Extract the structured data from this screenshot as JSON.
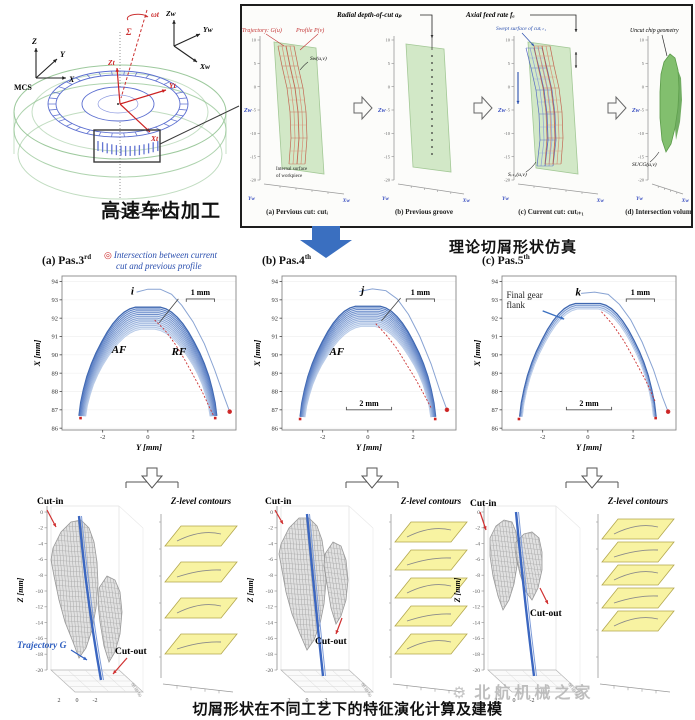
{
  "page": {
    "sim_heading": "理论切屑形状仿真",
    "bottom_caption": "切屑形状在不同工艺下的特征演化计算及建模",
    "watermark": "北航机械之家",
    "watermark_icon": "⚙",
    "accent_blue": "#3a6fc0",
    "red": "#cc2a2a",
    "yellow_plane": "#f8f3a2",
    "green_surface": "#cfe7c3"
  },
  "gear": {
    "caption": "高速车齿加工",
    "mcs": {
      "label": "MCS",
      "z": "Z",
      "y": "Y",
      "x": "X"
    },
    "tool": {
      "omega": "ωt",
      "sigma": "Σ"
    },
    "wcs": {
      "z": "Zw",
      "y": "Yw",
      "x": "Xw"
    },
    "tcs": {
      "z": "Zt",
      "y": "Yt",
      "x": "Xt"
    },
    "omega_w": "ωw"
  },
  "panel": {
    "top_label_radial": "Radial depth-of-cut aₚ",
    "top_label_axial": "Axial feed rate fₐ",
    "zticks": [
      10,
      5,
      0,
      -5,
      -10,
      -15,
      -20
    ],
    "axis": {
      "z": "Zw",
      "y": "Yw",
      "x": "Xw"
    },
    "sub": [
      {
        "caption": "(a) Pervious cut: cutᵢ",
        "trajectory_label": "Trajectory: G(u)",
        "profile_label": "Profile P(v)",
        "surface_label": "Sw(u,v)",
        "note1": "Internal surface",
        "note2": "of workpiece"
      },
      {
        "caption": "(b) Previous groove"
      },
      {
        "caption": "(c) Current cut: cutᵢ₊₁",
        "swept_label": "Swept surface of cutᵢ₊₁",
        "surface_label": "Sᵢ₊₁(u,v)"
      },
      {
        "caption": "(d) Intersection volume",
        "top_label": "Uncut chip geometry",
        "surface_label": "SUCG(u,v)"
      }
    ]
  },
  "chart_data": {
    "profile_plots": [
      {
        "type": "line",
        "key": "a",
        "title_prefix": "(a) Pas.3",
        "title_sup": "rd",
        "xlabel": "Y [mm]",
        "ylabel": "X [mm]",
        "xlim": [
          -3.8,
          3.9
        ],
        "ylim": [
          85.9,
          94.3
        ],
        "xticks": [
          -2,
          0,
          2
        ],
        "yticks": [
          86,
          87,
          88,
          89,
          90,
          91,
          92,
          93,
          94
        ],
        "band": {
          "apex_outer": 92.6,
          "apex_inner": 91.4,
          "flat_outer": 0.55,
          "flat_inner": 0.3,
          "foot_outer": 3.05,
          "foot_inner": 2.75,
          "foot_y": 86.55,
          "curves": 13
        },
        "prev_profile": [
          [
            -0.5,
            93.42
          ],
          [
            0,
            93.58
          ],
          [
            0.55,
            93.58
          ],
          [
            1.05,
            93.3
          ],
          [
            1.5,
            92.7
          ],
          [
            2,
            91.8
          ],
          [
            2.5,
            90.6
          ],
          [
            2.95,
            89.2
          ],
          [
            3.35,
            87.8
          ],
          [
            3.62,
            86.9
          ]
        ],
        "red_dashed": [
          [
            0.3,
            91.9
          ],
          [
            0.75,
            91.35
          ],
          [
            1.2,
            90.6
          ],
          [
            1.6,
            89.8
          ],
          [
            2,
            88.9
          ],
          [
            2.4,
            88
          ],
          [
            2.7,
            87.2
          ],
          [
            2.9,
            86.7
          ]
        ],
        "foot_markers": [
          [
            -2.98,
            86.55
          ],
          [
            2.98,
            86.55
          ],
          [
            3.62,
            86.9
          ]
        ],
        "labels": [
          {
            "t": "AF",
            "x": -1.6,
            "y": 90.1
          },
          {
            "t": "RF",
            "x": 1.05,
            "y": 90.0
          }
        ],
        "letter": {
          "t": "i",
          "x": -0.75,
          "y": 93.3
        },
        "leader": [
          [
            1.35,
            93.05
          ],
          [
            0.5,
            91.75
          ]
        ],
        "scalebar_top": {
          "t": "1 mm",
          "x1": 1.7,
          "x2": 2.95,
          "y": 93.05
        },
        "legend": {
          "marker": "◎",
          "line1": "Intersection between current",
          "line2": "cut and previous profile"
        }
      },
      {
        "type": "line",
        "key": "b",
        "title_prefix": "(b) Pas.4",
        "title_sup": "th",
        "xlabel": "Y [mm]",
        "ylabel": "X [mm]",
        "xlim": [
          -3.8,
          3.9
        ],
        "ylim": [
          85.9,
          94.3
        ],
        "xticks": [
          -2,
          0,
          2
        ],
        "yticks": [
          86,
          87,
          88,
          89,
          90,
          91,
          92,
          93,
          94
        ],
        "band": {
          "apex_outer": 92.65,
          "apex_inner": 91.55,
          "flat_outer": 0.55,
          "flat_inner": 0.3,
          "foot_outer": 3.0,
          "foot_inner": 2.78,
          "foot_y": 86.5,
          "curves": 13
        },
        "prev_profile": [
          [
            -0.4,
            93.45
          ],
          [
            0.2,
            93.6
          ],
          [
            0.8,
            93.5
          ],
          [
            1.3,
            93.05
          ],
          [
            1.8,
            92.2
          ],
          [
            2.3,
            91
          ],
          [
            2.8,
            89.5
          ],
          [
            3.2,
            88
          ],
          [
            3.5,
            87
          ]
        ],
        "red_dashed": [
          [
            0.35,
            91.7
          ],
          [
            0.8,
            91.1
          ],
          [
            1.25,
            90.4
          ],
          [
            1.7,
            89.5
          ],
          [
            2.1,
            88.7
          ],
          [
            2.5,
            87.8
          ],
          [
            2.8,
            87.1
          ]
        ],
        "foot_markers": [
          [
            -3.0,
            86.5
          ],
          [
            2.98,
            86.5
          ],
          [
            3.5,
            87.0
          ]
        ],
        "labels": [
          {
            "t": "AF",
            "x": -1.7,
            "y": 90.0
          }
        ],
        "letter": {
          "t": "j",
          "x": -0.3,
          "y": 93.35
        },
        "leader": [
          [
            1.45,
            93.1
          ],
          [
            0.6,
            91.85
          ]
        ],
        "scalebar_top": {
          "t": "1 mm",
          "x1": 1.7,
          "x2": 2.95,
          "y": 93.05
        },
        "scalebar_bottom": {
          "t": "2 mm",
          "x1": -0.95,
          "x2": 1.05,
          "y": 87.0
        }
      },
      {
        "type": "line",
        "key": "c",
        "title_prefix": "(c) Pas.5",
        "title_sup": "th",
        "xlabel": "Y [mm]",
        "ylabel": "X [mm]",
        "xlim": [
          -3.8,
          3.9
        ],
        "ylim": [
          85.9,
          94.3
        ],
        "xticks": [
          -2,
          0,
          2
        ],
        "yticks": [
          86,
          87,
          88,
          89,
          90,
          91,
          92,
          93,
          94
        ],
        "band": {
          "apex_outer": 92.8,
          "apex_inner": 92.5,
          "flat_outer": 0.55,
          "flat_inner": 0.45,
          "foot_outer": 3.02,
          "foot_inner": 2.9,
          "foot_y": 86.5,
          "curves": 4
        },
        "prev_profile": [
          [
            -0.3,
            93.35
          ],
          [
            0.3,
            93.42
          ],
          [
            0.9,
            93.3
          ],
          [
            1.4,
            92.75
          ],
          [
            1.9,
            91.9
          ],
          [
            2.4,
            90.7
          ],
          [
            2.9,
            89.2
          ],
          [
            3.3,
            87.7
          ],
          [
            3.55,
            86.9
          ]
        ],
        "red_dashed": [
          [
            0.6,
            92.35
          ],
          [
            1.1,
            91.65
          ],
          [
            1.6,
            90.75
          ],
          [
            2.1,
            89.65
          ],
          [
            2.6,
            88.5
          ],
          [
            3.0,
            87.4
          ]
        ],
        "foot_markers": [
          [
            -3.05,
            86.5
          ],
          [
            3.0,
            86.55
          ],
          [
            3.55,
            86.9
          ]
        ],
        "labels": [],
        "letter": {
          "t": "k",
          "x": -0.55,
          "y": 93.25
        },
        "scalebar_top": {
          "t": "1 mm",
          "x1": 1.7,
          "x2": 2.95,
          "y": 93.05
        },
        "scalebar_bottom": {
          "t": "2 mm",
          "x1": -0.95,
          "x2": 1.05,
          "y": 87.0
        },
        "flank_label": {
          "line1": "Final gear",
          "line2": "flank",
          "x": -3.6,
          "y": 93.1,
          "arrow": [
            [
              -2.0,
              92.4
            ],
            [
              -1.05,
              91.95
            ]
          ]
        }
      }
    ],
    "chip3d": [
      {
        "type": "scatter",
        "key": "a",
        "zlabel": "Z [mm]",
        "zticks": [
          0,
          -2,
          -4,
          -6,
          -8,
          -10,
          -12,
          -14,
          -16,
          -18,
          -20
        ],
        "floor_ticks": [
          "2",
          "0",
          "-2"
        ],
        "side_ticks": "86 88 90",
        "lobe1": [
          [
            38,
            56
          ],
          [
            46,
            40
          ],
          [
            56,
            30
          ],
          [
            66,
            28
          ],
          [
            74,
            36
          ],
          [
            79,
            50
          ],
          [
            82,
            70
          ],
          [
            83,
            92
          ],
          [
            81,
            116
          ],
          [
            77,
            138
          ],
          [
            71,
            156
          ],
          [
            64,
            166
          ],
          [
            58,
            150
          ],
          [
            50,
            130
          ],
          [
            44,
            108
          ],
          [
            39,
            84
          ],
          [
            36,
            68
          ]
        ],
        "lobe2": [
          [
            84,
            96
          ],
          [
            92,
            84
          ],
          [
            100,
            88
          ],
          [
            105,
            100
          ],
          [
            107,
            120
          ],
          [
            105,
            142
          ],
          [
            100,
            160
          ],
          [
            94,
            170
          ],
          [
            89,
            154
          ],
          [
            85,
            130
          ],
          [
            83,
            112
          ]
        ],
        "traj": [
          [
            64,
            24
          ],
          [
            72,
            110
          ],
          [
            86,
            188
          ]
        ],
        "cut_in": {
          "t": "Cut-in",
          "x": 22,
          "y": 12,
          "ax": [
            [
              32,
              18
            ],
            [
              41,
              35
            ]
          ]
        },
        "cut_out": {
          "t": "Cut-out",
          "x": 100,
          "y": 162,
          "ax": [
            [
              112,
              166
            ],
            [
              98,
              182
            ]
          ]
        },
        "traj_label": {
          "t": "Trajectory G",
          "x": 2,
          "y": 156,
          "ax": [
            [
              56,
              158
            ],
            [
              72,
              168
            ]
          ]
        },
        "contours": {
          "title": "Z-level contours",
          "n": 4,
          "y0": 34,
          "step": 36
        }
      },
      {
        "type": "scatter",
        "key": "b",
        "zlabel": "Z [mm]",
        "zticks": [
          0,
          -2,
          -4,
          -6,
          -8,
          -10,
          -12,
          -14,
          -16,
          -18,
          -20
        ],
        "floor_ticks": [
          "2",
          "0",
          "-2"
        ],
        "side_ticks": "86 88 90",
        "lobe1": [
          [
            36,
            52
          ],
          [
            44,
            36
          ],
          [
            54,
            26
          ],
          [
            64,
            26
          ],
          [
            72,
            34
          ],
          [
            77,
            48
          ],
          [
            80,
            68
          ],
          [
            81,
            90
          ],
          [
            79,
            112
          ],
          [
            75,
            132
          ],
          [
            69,
            148
          ],
          [
            62,
            158
          ],
          [
            55,
            142
          ],
          [
            47,
            122
          ],
          [
            41,
            100
          ],
          [
            37,
            78
          ],
          [
            34,
            62
          ]
        ],
        "lobe2": [
          [
            80,
            62
          ],
          [
            88,
            50
          ],
          [
            96,
            54
          ],
          [
            101,
            68
          ],
          [
            103,
            88
          ],
          [
            101,
            108
          ],
          [
            96,
            124
          ],
          [
            91,
            132
          ],
          [
            86,
            116
          ],
          [
            82,
            92
          ],
          [
            79,
            74
          ]
        ],
        "traj": [
          [
            62,
            22
          ],
          [
            70,
            110
          ],
          [
            78,
            184
          ]
        ],
        "cut_in": {
          "t": "Cut-in",
          "x": 20,
          "y": 12,
          "ax": [
            [
              30,
              18
            ],
            [
              38,
              32
            ]
          ]
        },
        "cut_out": {
          "t": "Cut-out",
          "x": 70,
          "y": 152,
          "ax": [
            [
              97,
              126
            ],
            [
              91,
              142
            ]
          ]
        },
        "contours": {
          "title": "Z-level contours",
          "n": 5,
          "y0": 30,
          "step": 28
        }
      },
      {
        "type": "scatter",
        "key": "c",
        "zlabel": "Z [mm]",
        "zticks": [
          0,
          -2,
          -4,
          -6,
          -8,
          -10,
          -12,
          -14,
          -16,
          -18,
          -20
        ],
        "floor_ticks": [
          "2",
          "0",
          "-2"
        ],
        "side_ticks": "86 88 90",
        "lobe1": [
          [
            38,
            46
          ],
          [
            44,
            34
          ],
          [
            52,
            28
          ],
          [
            60,
            30
          ],
          [
            64,
            40
          ],
          [
            66,
            56
          ],
          [
            65,
            74
          ],
          [
            62,
            92
          ],
          [
            57,
            108
          ],
          [
            51,
            118
          ],
          [
            46,
            104
          ],
          [
            41,
            84
          ],
          [
            38,
            64
          ]
        ],
        "lobe2": [
          [
            64,
            50
          ],
          [
            72,
            42
          ],
          [
            80,
            40
          ],
          [
            87,
            46
          ],
          [
            90,
            60
          ],
          [
            90,
            78
          ],
          [
            86,
            96
          ],
          [
            80,
            108
          ],
          [
            74,
            100
          ],
          [
            68,
            82
          ],
          [
            64,
            64
          ]
        ],
        "traj": [
          [
            64,
            20
          ],
          [
            72,
            104
          ],
          [
            82,
            184
          ]
        ],
        "cut_in": {
          "t": "Cut-in",
          "x": 18,
          "y": 14,
          "ax": [
            [
              28,
              20
            ],
            [
              34,
              38
            ]
          ]
        },
        "cut_out": {
          "t": "Cut-out",
          "x": 78,
          "y": 124,
          "ax": [
            [
              88,
              96
            ],
            [
              96,
              112
            ]
          ]
        },
        "contours": {
          "title": "Z-level contours",
          "n": 5,
          "y0": 27,
          "step": 23
        }
      }
    ]
  }
}
